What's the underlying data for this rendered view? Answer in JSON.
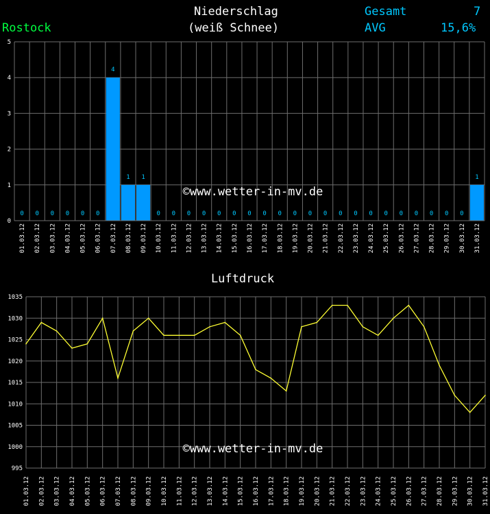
{
  "header": {
    "title_line1": "Niederschlag",
    "title_line2": "(weiß Schnee)",
    "location": "Rostock",
    "total_label": "Gesamt",
    "total_value": "7",
    "avg_label": "AVG",
    "avg_value": "15,6%"
  },
  "colors": {
    "background": "#000000",
    "bar": "#0099ff",
    "line": "#ffff33",
    "grid": "#6e6e6e",
    "text_cyan": "#00c8ff",
    "text_green": "#00ff40",
    "text_white": "#ffffff"
  },
  "chart_data": [
    {
      "type": "bar",
      "title": "",
      "watermark": "©www.wetter-in-mv.de",
      "categories": [
        "01.03.12",
        "02.03.12",
        "03.03.12",
        "04.03.12",
        "05.03.12",
        "06.03.12",
        "07.03.12",
        "08.03.12",
        "09.03.12",
        "10.03.12",
        "11.03.12",
        "12.03.12",
        "13.03.12",
        "14.03.12",
        "15.03.12",
        "16.03.12",
        "17.03.12",
        "18.03.12",
        "19.03.12",
        "20.03.12",
        "21.03.12",
        "22.03.12",
        "23.03.12",
        "24.03.12",
        "25.03.12",
        "26.03.12",
        "27.03.12",
        "28.03.12",
        "29.03.12",
        "30.03.12",
        "31.03.12"
      ],
      "values": [
        0,
        0,
        0,
        0,
        0,
        0,
        4,
        1,
        1,
        0,
        0,
        0,
        0,
        0,
        0,
        0,
        0,
        0,
        0,
        0,
        0,
        0,
        0,
        0,
        0,
        0,
        0,
        0,
        0,
        0,
        1
      ],
      "ylim": [
        0,
        5
      ],
      "yticks": [
        0,
        1,
        2,
        3,
        4,
        5
      ],
      "grid": true
    },
    {
      "type": "line",
      "title": "Luftdruck",
      "watermark": "©www.wetter-in-mv.de",
      "categories": [
        "01.03.12",
        "02.03.12",
        "03.03.12",
        "04.03.12",
        "05.03.12",
        "06.03.12",
        "07.03.12",
        "08.03.12",
        "09.03.12",
        "10.03.12",
        "11.03.12",
        "12.03.12",
        "13.03.12",
        "14.03.12",
        "15.03.12",
        "16.03.12",
        "17.03.12",
        "18.03.12",
        "19.03.12",
        "20.03.12",
        "21.03.12",
        "22.03.12",
        "23.03.12",
        "24.03.12",
        "25.03.12",
        "26.03.12",
        "27.03.12",
        "28.03.12",
        "29.03.12",
        "30.03.12",
        "31.03.12"
      ],
      "values": [
        1024,
        1029,
        1027,
        1023,
        1024,
        1030,
        1016,
        1027,
        1030,
        1026,
        1026,
        1026,
        1028,
        1029,
        1026,
        1018,
        1016,
        1013,
        1028,
        1029,
        1033,
        1033,
        1028,
        1026,
        1030,
        1033,
        1028,
        1019,
        1012,
        1008,
        1012
      ],
      "ylim": [
        995,
        1035
      ],
      "yticks": [
        995,
        1000,
        1005,
        1010,
        1015,
        1020,
        1025,
        1030,
        1035
      ],
      "grid": true
    }
  ]
}
